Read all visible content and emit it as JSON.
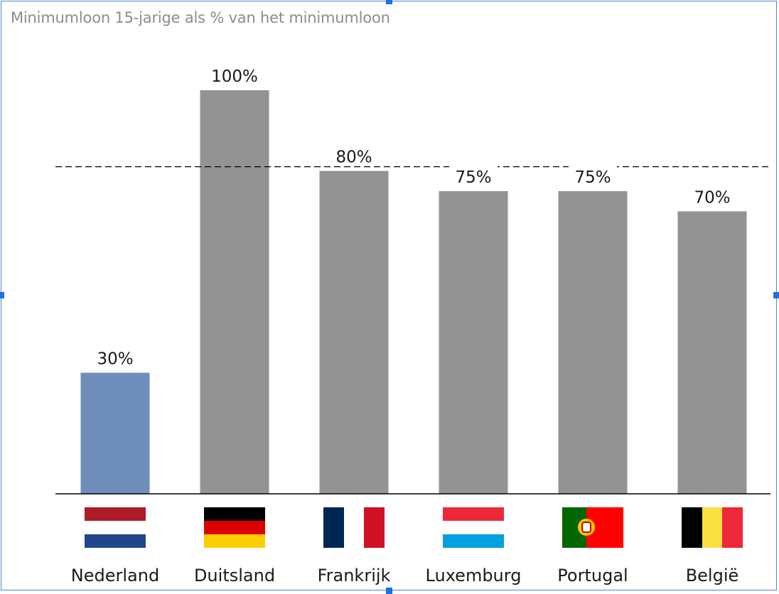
{
  "chart_data": {
    "type": "bar",
    "title": "Minimumloon 15-jarige als % van het minimumloon",
    "categories": [
      "Nederland",
      "Duitsland",
      "Frankrijk",
      "Luxemburg",
      "Portugal",
      "België"
    ],
    "values": [
      30,
      100,
      80,
      75,
      75,
      70
    ],
    "data_labels": [
      "30%",
      "100%",
      "80%",
      "75%",
      "75%",
      "70%"
    ],
    "ylim": [
      0,
      110
    ],
    "reference_line": 80,
    "grid": false,
    "legend": "none",
    "highlight_category": "Nederland",
    "colors": {
      "highlight": "#6f8fba",
      "bar": "#939393",
      "axis": "#000000",
      "reference": "#000000"
    },
    "flags": [
      "netherlands-flag",
      "germany-flag",
      "france-flag",
      "luxembourg-flag",
      "portugal-flag",
      "belgium-flag"
    ]
  }
}
